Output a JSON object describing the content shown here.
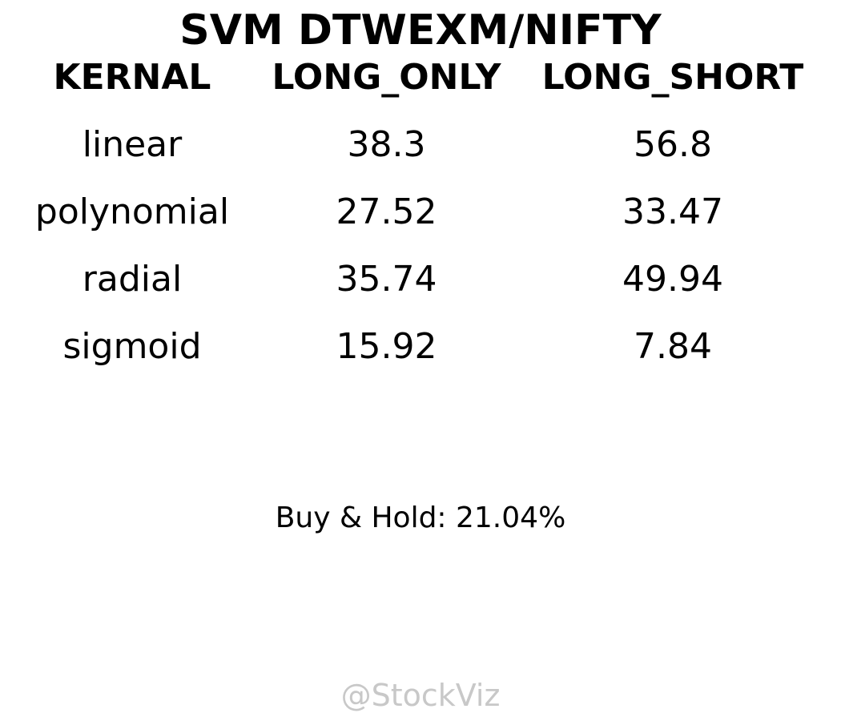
{
  "chart_data": {
    "type": "table",
    "title": "SVM DTWEXM/NIFTY",
    "columns": [
      "KERNAL",
      "LONG_ONLY",
      "LONG_SHORT"
    ],
    "rows": [
      {
        "kernal": "linear",
        "long_only": "38.3",
        "long_short": "56.8"
      },
      {
        "kernal": "polynomial",
        "long_only": "27.52",
        "long_short": "33.47"
      },
      {
        "kernal": "radial",
        "long_only": "35.74",
        "long_short": "49.94"
      },
      {
        "kernal": "sigmoid",
        "long_only": "15.92",
        "long_short": "7.84"
      }
    ],
    "footnote": "Buy & Hold: 21.04%",
    "watermark": "@StockViz",
    "colors": {
      "text": "#000000",
      "watermark": "#c8c8c8",
      "background": "#ffffff"
    }
  }
}
